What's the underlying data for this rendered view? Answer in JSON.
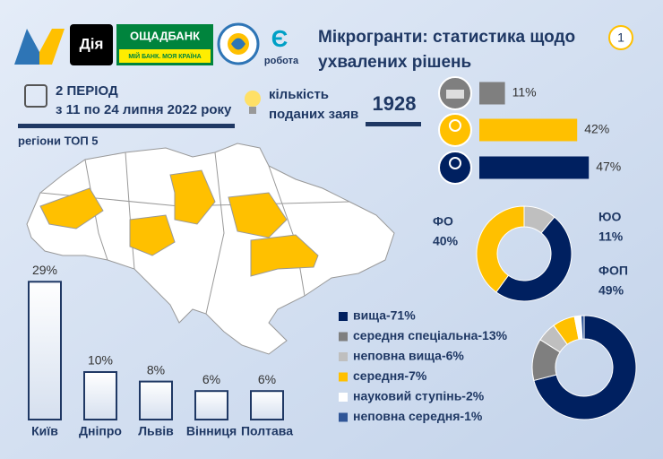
{
  "header": {
    "logos": [
      "Дія",
      "ОЩАДБАНК",
      "МІЙ БАНК. МОЯ КРАЇНА",
      "робота"
    ],
    "title_lines": [
      "Мікрогранти: статистика щодо",
      "ухвалених рішень"
    ],
    "page_number": "1"
  },
  "period": {
    "label": "2 ПЕРІОД",
    "dates": "з 11 по 24 липня 2022 року"
  },
  "applications": {
    "label_lines": [
      "кількість",
      "поданих заяв"
    ],
    "value": 1928
  },
  "map": {
    "title": "регіони ТОП 5"
  },
  "chart_data": [
    {
      "type": "bar",
      "categories": [
        "Київ",
        "Дніпро",
        "Львів",
        "Вінниця",
        "Полтава"
      ],
      "values": [
        29,
        10,
        8,
        6,
        6
      ],
      "value_labels": [
        "29%",
        "10%",
        "8%",
        "6%",
        "6%"
      ],
      "color": "#1f3864"
    },
    {
      "type": "bar",
      "horizontal": true,
      "categories": [
        null,
        null,
        null
      ],
      "values": [
        11,
        42,
        47
      ],
      "value_labels": [
        "11%",
        "42%",
        "47%"
      ],
      "colors": [
        "#7f7f7f",
        "#ffc000",
        "#002060"
      ]
    },
    {
      "type": "donut",
      "categories": [
        "ЮО",
        "ФОП",
        "ФО"
      ],
      "values": [
        11,
        49,
        40
      ],
      "value_labels": [
        "11%",
        "49%",
        "40%"
      ],
      "colors": [
        "#bfbfbf",
        "#002060",
        "#ffc000"
      ]
    },
    {
      "type": "donut",
      "categories": [
        "вища-71%",
        "середня спеціальна-13%",
        "неповна вища-6%",
        "середня-7%",
        "науковий ступінь-2%",
        "неповна середня-1%"
      ],
      "values": [
        71,
        13,
        6,
        7,
        2,
        1
      ],
      "colors": [
        "#002060",
        "#7f7f7f",
        "#bfbfbf",
        "#ffc000",
        "#ffffff",
        "#2f5597"
      ],
      "legend": true
    }
  ]
}
